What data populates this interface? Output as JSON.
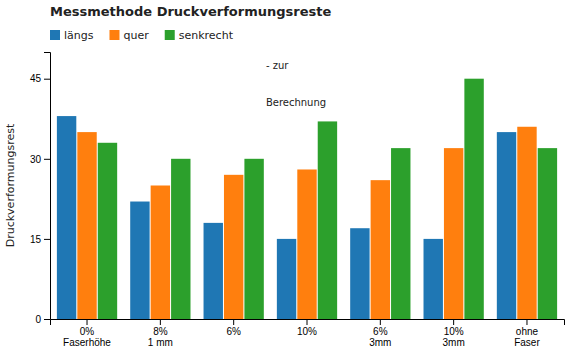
{
  "chart_data": {
    "type": "bar",
    "title": "Messmethode Druckverformungsreste",
    "annotations": [
      "- zur",
      "Berechnung"
    ],
    "y_label": "Druckverformungsrest",
    "categories": [
      "0%\nFaserhöhe",
      "8%\n1 mm",
      "6%",
      "10%",
      "6%\n3mm",
      "10%\n3mm",
      "ohne\nFaser"
    ],
    "series": [
      {
        "name": "längs",
        "values": [
          38,
          22,
          18,
          15,
          17,
          15,
          35
        ]
      },
      {
        "name": "quer",
        "values": [
          35,
          25,
          27,
          28,
          26,
          32,
          36
        ]
      },
      {
        "name": "senkrecht",
        "values": [
          33,
          30,
          30,
          37,
          32,
          45,
          32
        ]
      }
    ],
    "ylim": [
      0,
      50
    ],
    "yticks": [
      0,
      15,
      30,
      45
    ],
    "grid": false,
    "legend": "upper left"
  }
}
